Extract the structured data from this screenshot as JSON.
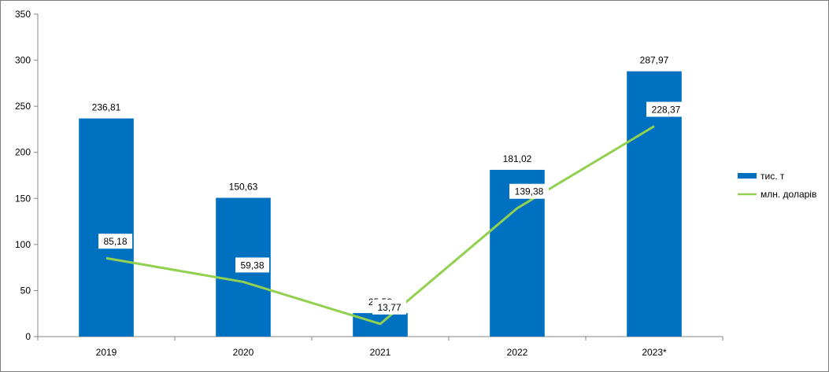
{
  "chart_data": {
    "type": "bar",
    "categories": [
      "2019",
      "2020",
      "2021",
      "2022",
      "2023*"
    ],
    "series": [
      {
        "name": "тис. т",
        "kind": "bar",
        "color": "#0070C0",
        "values": [
          236.81,
          150.63,
          25.53,
          181.02,
          287.97
        ]
      },
      {
        "name": "млн. доларів",
        "kind": "line",
        "color": "#92D050",
        "values": [
          85.18,
          59.38,
          13.77,
          139.38,
          228.37
        ]
      }
    ],
    "bar_labels": [
      "236,81",
      "150,63",
      "25,53",
      "181,02",
      "287,97"
    ],
    "line_labels": [
      "85,18",
      "59,38",
      "13,77",
      "139,38",
      "228,37"
    ],
    "y_ticks": [
      "0",
      "50",
      "100",
      "150",
      "200",
      "250",
      "300",
      "350"
    ],
    "ylim": [
      0,
      350
    ],
    "title": "",
    "xlabel": "",
    "ylabel": "",
    "legend_position": "right",
    "grid": false
  }
}
